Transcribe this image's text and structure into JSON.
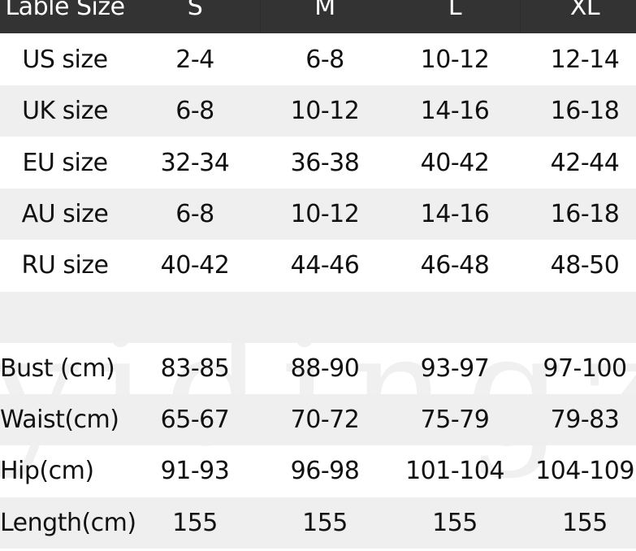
{
  "header": [
    "Lable Size",
    "S",
    "M",
    "L",
    "XL"
  ],
  "size_rows": [
    [
      "US size",
      "2-4",
      "6-8",
      "10-12",
      "12-14"
    ],
    [
      "UK size",
      "6-8",
      "10-12",
      "14-16",
      "16-18"
    ],
    [
      "EU size",
      "32-34",
      "36-38",
      "40-42",
      "42-44"
    ],
    [
      "AU size",
      "6-8",
      "10-12",
      "14-16",
      "16-18"
    ],
    [
      "RU size",
      "40-42",
      "44-46",
      "46-48",
      "48-50"
    ]
  ],
  "measure_rows": [
    [
      "Bust (cm)",
      "83-85",
      "88-90",
      "93-97",
      "97-100"
    ],
    [
      "Waist(cm)",
      "65-67",
      "70-72",
      "75-79",
      "79-83"
    ],
    [
      "Hip(cm)",
      "91-93",
      "96-98",
      "101-104",
      "104-109"
    ],
    [
      "Length(cm)",
      "155",
      "155",
      "155",
      "155"
    ]
  ],
  "watermark": "yidingzs",
  "colors": {
    "header_bg": "#333333",
    "stripe": "#efefef"
  }
}
